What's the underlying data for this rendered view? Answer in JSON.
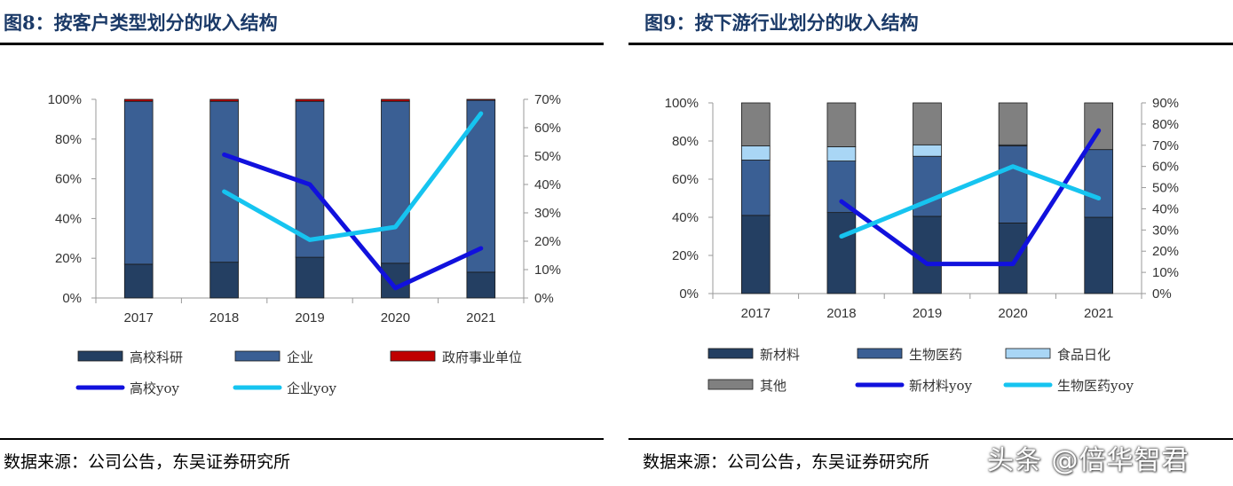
{
  "panels": [
    {
      "title": "图8：按客户类型划分的收入结构",
      "source": "数据来源：公司公告，东吴证券研究所"
    },
    {
      "title": "图9：按下游行业划分的收入结构",
      "source": "数据来源：公司公告，东吴证券研究所"
    }
  ],
  "watermark": "头条 @倍华智君",
  "chart_data": [
    {
      "type": "bar",
      "stacked": true,
      "title": "图8：按客户类型划分的收入结构",
      "categories": [
        "2017",
        "2018",
        "2019",
        "2020",
        "2021"
      ],
      "ylim": [
        0,
        100
      ],
      "yticks": [
        "0%",
        "20%",
        "40%",
        "60%",
        "80%",
        "100%"
      ],
      "y2lim": [
        0,
        70
      ],
      "y2ticks": [
        "0%",
        "10%",
        "20%",
        "30%",
        "40%",
        "50%",
        "60%",
        "70%"
      ],
      "series": [
        {
          "name": "高校科研",
          "kind": "bar",
          "color": "#243f62",
          "values": [
            17,
            18,
            20.5,
            17.5,
            13
          ]
        },
        {
          "name": "企业",
          "kind": "bar",
          "color": "#3a5f94",
          "values": [
            82,
            81,
            78.5,
            81.5,
            86.5
          ]
        },
        {
          "name": "政府事业单位",
          "kind": "bar",
          "color": "#c00000",
          "values": [
            1,
            1,
            1,
            1,
            0.5
          ]
        },
        {
          "name": "高校yoy",
          "kind": "line",
          "axis": "right",
          "color": "#1111dd",
          "values": [
            null,
            50.5,
            40,
            3.5,
            17.5
          ]
        },
        {
          "name": "企业yoy",
          "kind": "line",
          "axis": "right",
          "color": "#16c4f0",
          "values": [
            null,
            37.5,
            20.5,
            25,
            65
          ]
        }
      ],
      "legend_rows": [
        [
          "高校科研",
          "企业",
          "政府事业单位"
        ],
        [
          "高校yoy",
          "企业yoy"
        ]
      ]
    },
    {
      "type": "bar",
      "stacked": true,
      "title": "图9：按下游行业划分的收入结构",
      "categories": [
        "2017",
        "2018",
        "2019",
        "2020",
        "2021"
      ],
      "ylim": [
        0,
        100
      ],
      "yticks": [
        "0%",
        "20%",
        "40%",
        "60%",
        "80%",
        "100%"
      ],
      "y2lim": [
        0,
        90
      ],
      "y2ticks": [
        "0%",
        "10%",
        "20%",
        "30%",
        "40%",
        "50%",
        "60%",
        "70%",
        "80%",
        "90%"
      ],
      "series": [
        {
          "name": "新材料",
          "kind": "bar",
          "color": "#243f62",
          "values": [
            41,
            42.5,
            40.5,
            37,
            40
          ]
        },
        {
          "name": "生物医药",
          "kind": "bar",
          "color": "#3a5f94",
          "values": [
            29,
            27,
            31.5,
            40.5,
            35.5
          ]
        },
        {
          "name": "食品日化",
          "kind": "bar",
          "color": "#a9d6f5",
          "values": [
            7.5,
            7.5,
            6,
            0.5,
            0
          ]
        },
        {
          "name": "其他",
          "kind": "bar",
          "color": "#808080",
          "values": [
            22.5,
            23,
            22,
            22,
            24.5
          ]
        },
        {
          "name": "新材料yoy",
          "kind": "line",
          "axis": "right",
          "color": "#1111dd",
          "values": [
            null,
            43.5,
            14,
            14,
            77
          ]
        },
        {
          "name": "生物医药yoy",
          "kind": "line",
          "axis": "right",
          "color": "#16c4f0",
          "values": [
            null,
            27,
            null,
            60,
            45
          ]
        }
      ],
      "legend_rows": [
        [
          "新材料",
          "生物医药",
          "食品日化"
        ],
        [
          "其他",
          "新材料yoy",
          "生物医药yoy"
        ]
      ]
    }
  ]
}
